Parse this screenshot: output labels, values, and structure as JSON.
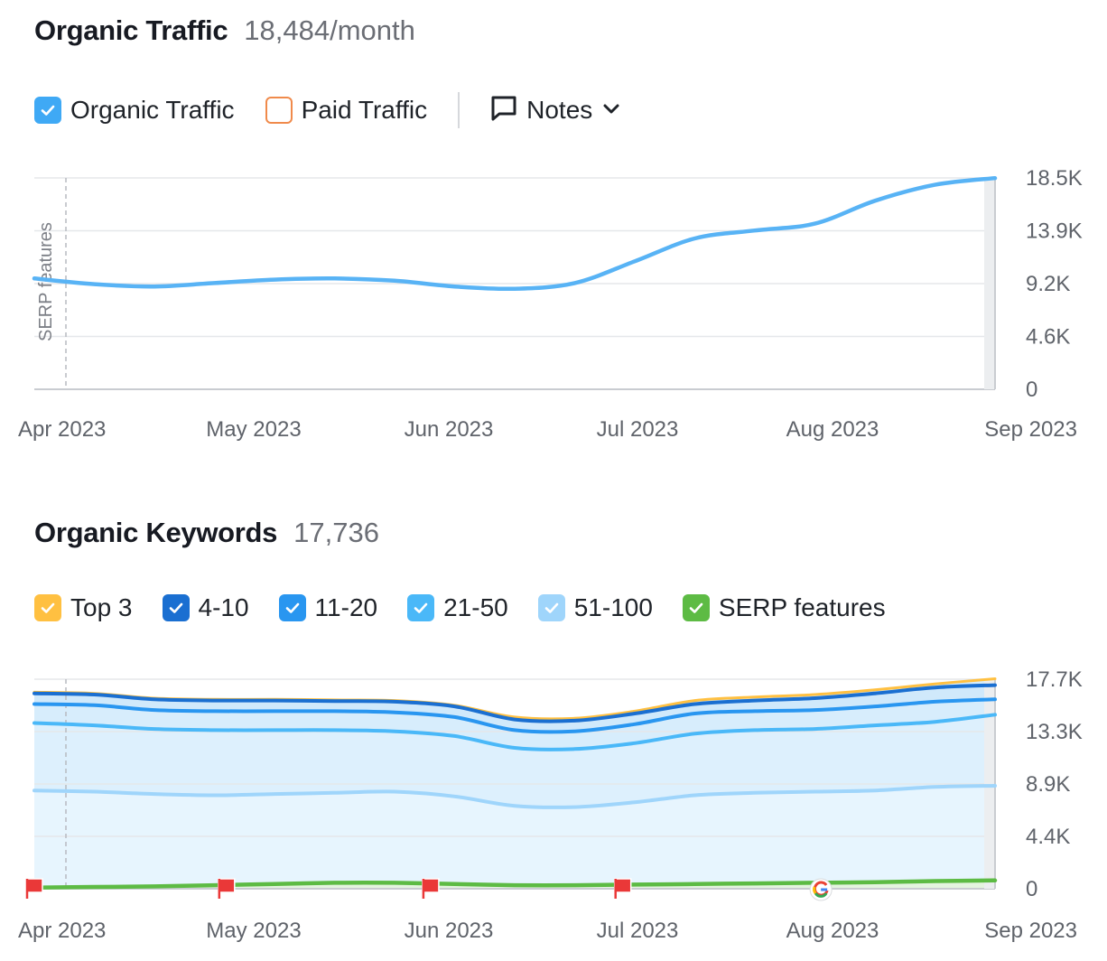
{
  "traffic": {
    "title": "Organic Traffic",
    "value": "18,484/month",
    "legend": [
      {
        "label": "Organic Traffic",
        "checked": true,
        "color": "#3fa9f5"
      },
      {
        "label": "Paid Traffic",
        "checked": false,
        "color": "#f08a4b"
      }
    ],
    "notes_label": "Notes"
  },
  "keywords": {
    "title": "Organic Keywords",
    "value": "17,736",
    "legend": [
      {
        "label": "Top 3",
        "checked": true,
        "color": "#ffc041"
      },
      {
        "label": "4-10",
        "checked": true,
        "color": "#1a6fd1"
      },
      {
        "label": "11-20",
        "checked": true,
        "color": "#2996f0"
      },
      {
        "label": "21-50",
        "checked": true,
        "color": "#4ab8f8"
      },
      {
        "label": "51-100",
        "checked": true,
        "color": "#9fd5fb"
      },
      {
        "label": "SERP features",
        "checked": true,
        "color": "#5dbb44"
      }
    ]
  },
  "chart_data": [
    {
      "type": "line",
      "x_labels": [
        "Apr 2023",
        "May 2023",
        "Jun 2023",
        "Jul 2023",
        "Aug 2023",
        "Sep 2023"
      ],
      "y_ticks": [
        "18.5K",
        "13.9K",
        "9.2K",
        "4.6K",
        "0"
      ],
      "ylim": [
        0,
        18500
      ],
      "side_label": "SERP features",
      "series": [
        {
          "color": "#58b3f5",
          "values": [
            9700,
            9200,
            9000,
            9300,
            9600,
            9700,
            9500,
            9000,
            8800,
            9300,
            11200,
            13200,
            13900,
            14500,
            16500,
            17900,
            18484
          ]
        }
      ]
    },
    {
      "type": "area",
      "x_labels": [
        "Apr 2023",
        "May 2023",
        "Jun 2023",
        "Jul 2023",
        "Aug 2023",
        "Sep 2023"
      ],
      "y_ticks": [
        "17.7K",
        "13.3K",
        "8.9K",
        "4.4K",
        "0"
      ],
      "ylim": [
        0,
        17700
      ],
      "series": [
        {
          "name": "Top 3",
          "color": "#ffc041",
          "values": [
            16600,
            16500,
            16100,
            16000,
            16000,
            15950,
            15900,
            15500,
            14500,
            14400,
            15000,
            15900,
            16200,
            16400,
            16800,
            17300,
            17736
          ]
        },
        {
          "name": "4-10",
          "color": "#1a6fd1",
          "values": [
            16500,
            16400,
            16000,
            15900,
            15900,
            15850,
            15800,
            15400,
            14300,
            14200,
            14800,
            15600,
            15900,
            16100,
            16500,
            17000,
            17200
          ]
        },
        {
          "name": "11-20",
          "color": "#2996f0",
          "values": [
            15600,
            15500,
            15100,
            15000,
            15000,
            15000,
            14900,
            14500,
            13400,
            13300,
            13900,
            14800,
            15000,
            15100,
            15400,
            15800,
            16000
          ]
        },
        {
          "name": "21-50",
          "color": "#4ab8f8",
          "values": [
            14000,
            13800,
            13500,
            13400,
            13400,
            13400,
            13300,
            12900,
            11900,
            11800,
            12300,
            13100,
            13400,
            13500,
            13800,
            14100,
            14700
          ]
        },
        {
          "name": "51-100",
          "color": "#9fd5fb",
          "values": [
            8300,
            8200,
            8000,
            7900,
            8000,
            8100,
            8200,
            7800,
            7000,
            6900,
            7300,
            7900,
            8100,
            8200,
            8300,
            8600,
            8700
          ]
        },
        {
          "name": "SERP features",
          "color": "#5dbb44",
          "values": [
            100,
            150,
            200,
            300,
            400,
            500,
            500,
            400,
            300,
            300,
            350,
            400,
            450,
            500,
            550,
            650,
            700
          ]
        }
      ],
      "markers": [
        {
          "type": "flag",
          "index": 0
        },
        {
          "type": "flag",
          "index": 3.2
        },
        {
          "type": "flag",
          "index": 6.6
        },
        {
          "type": "flag",
          "index": 9.8
        },
        {
          "type": "google",
          "index": 13.1
        }
      ]
    }
  ]
}
